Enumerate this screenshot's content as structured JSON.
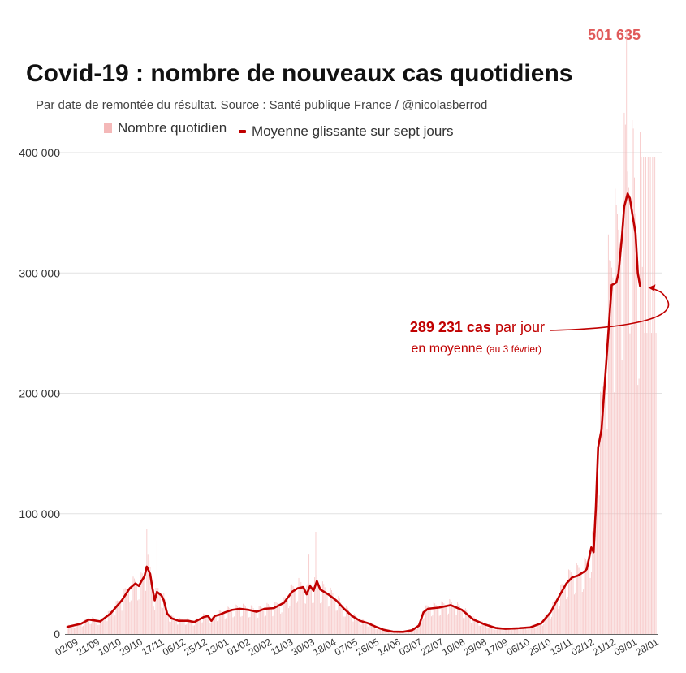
{
  "header": {
    "title": "Covid-19 : nombre de nouveaux cas quotidiens",
    "subtitle": "Par date de remontée du résultat. Source : Santé publique France / @nicolasberrod"
  },
  "legend": {
    "bars_label": "Nombre quotidien",
    "line_label": "Moyenne glissante sur sept jours"
  },
  "colors": {
    "line": "#c00000",
    "bars": "#f4b8b8",
    "grid": "#e2e2e2",
    "axis": "#666666",
    "peak": "#e05a5a"
  },
  "peak_label": "501 635",
  "annotation": {
    "value": "289 231 cas",
    "line1_suffix": " par jour",
    "line2": "en moyenne",
    "date": "(au 3 février)"
  },
  "chart_data": {
    "type": "bar+line",
    "title": "Covid-19 : nombre de nouveaux cas quotidiens",
    "ylim": [
      0,
      400000
    ],
    "yticks": [
      0,
      100000,
      200000,
      300000,
      400000
    ],
    "ytick_labels": [
      "0",
      "100 000",
      "200 000",
      "300 000",
      "400 000"
    ],
    "x_start": "02/09",
    "x_end": "03/02",
    "xtick_labels": [
      "02/09",
      "21/09",
      "10/10",
      "29/10",
      "17/11",
      "06/12",
      "25/12",
      "13/01",
      "01/02",
      "20/02",
      "11/03",
      "30/03",
      "18/04",
      "07/05",
      "26/05",
      "14/06",
      "03/07",
      "22/07",
      "10/08",
      "29/08",
      "17/09",
      "06/10",
      "25/10",
      "13/11",
      "02/12",
      "21/12",
      "09/01",
      "28/01"
    ],
    "day_index_range": [
      0,
      519
    ],
    "series": [
      {
        "name": "Moyenne glissante sur sept jours",
        "kind": "line",
        "points": [
          [
            0,
            6000
          ],
          [
            12,
            8500
          ],
          [
            19,
            12000
          ],
          [
            29,
            10500
          ],
          [
            38,
            17000
          ],
          [
            48,
            28000
          ],
          [
            55,
            38000
          ],
          [
            60,
            42000
          ],
          [
            63,
            40000
          ],
          [
            66,
            45000
          ],
          [
            68,
            48000
          ],
          [
            70,
            56000
          ],
          [
            73,
            50000
          ],
          [
            75,
            38000
          ],
          [
            77,
            28000
          ],
          [
            79,
            35000
          ],
          [
            83,
            32000
          ],
          [
            85,
            28000
          ],
          [
            88,
            17000
          ],
          [
            92,
            13000
          ],
          [
            98,
            11000
          ],
          [
            106,
            11000
          ],
          [
            112,
            10000
          ],
          [
            117,
            12500
          ],
          [
            120,
            14000
          ],
          [
            124,
            15000
          ],
          [
            127,
            11000
          ],
          [
            130,
            15000
          ],
          [
            134,
            16000
          ],
          [
            139,
            18000
          ],
          [
            145,
            20000
          ],
          [
            152,
            21000
          ],
          [
            160,
            20000
          ],
          [
            167,
            18500
          ],
          [
            174,
            21000
          ],
          [
            182,
            21500
          ],
          [
            191,
            26000
          ],
          [
            198,
            35000
          ],
          [
            203,
            38000
          ],
          [
            208,
            39000
          ],
          [
            211,
            33000
          ],
          [
            214,
            40000
          ],
          [
            217,
            36000
          ],
          [
            220,
            44000
          ],
          [
            223,
            37000
          ],
          [
            230,
            33000
          ],
          [
            237,
            28000
          ],
          [
            244,
            21000
          ],
          [
            251,
            15000
          ],
          [
            258,
            11000
          ],
          [
            265,
            9000
          ],
          [
            272,
            6000
          ],
          [
            279,
            3500
          ],
          [
            287,
            2000
          ],
          [
            296,
            1800
          ],
          [
            304,
            3200
          ],
          [
            310,
            7000
          ],
          [
            314,
            18000
          ],
          [
            318,
            21000
          ],
          [
            328,
            22000
          ],
          [
            338,
            24000
          ],
          [
            348,
            20000
          ],
          [
            358,
            12000
          ],
          [
            368,
            8000
          ],
          [
            378,
            5000
          ],
          [
            386,
            4300
          ],
          [
            398,
            4800
          ],
          [
            408,
            5500
          ],
          [
            418,
            9000
          ],
          [
            426,
            18000
          ],
          [
            434,
            32000
          ],
          [
            440,
            42000
          ],
          [
            445,
            47000
          ],
          [
            450,
            48500
          ],
          [
            456,
            52000
          ],
          [
            458,
            54000
          ],
          [
            462,
            72000
          ],
          [
            464,
            68000
          ],
          [
            466,
            105000
          ],
          [
            468,
            155000
          ],
          [
            471,
            170000
          ],
          [
            474,
            210000
          ],
          [
            477,
            250000
          ],
          [
            480,
            290000
          ],
          [
            484,
            292000
          ],
          [
            486,
            300000
          ],
          [
            489,
            330000
          ],
          [
            491,
            355000
          ],
          [
            494,
            366000
          ],
          [
            496,
            362000
          ],
          [
            498,
            350000
          ],
          [
            501,
            333000
          ],
          [
            503,
            300000
          ],
          [
            505,
            289231
          ]
        ]
      },
      {
        "name": "Nombre quotidien",
        "kind": "bar",
        "highlights": [
          [
            70,
            87000
          ],
          [
            79,
            78000
          ],
          [
            213,
            66000
          ],
          [
            219,
            85000
          ],
          [
            477,
            332000
          ],
          [
            483,
            370000
          ],
          [
            490,
            458000
          ],
          [
            493,
            501635
          ],
          [
            499,
            420000
          ],
          [
            505,
            417000
          ],
          [
            507,
            305000
          ]
        ],
        "last_day_value": 417000
      }
    ]
  }
}
